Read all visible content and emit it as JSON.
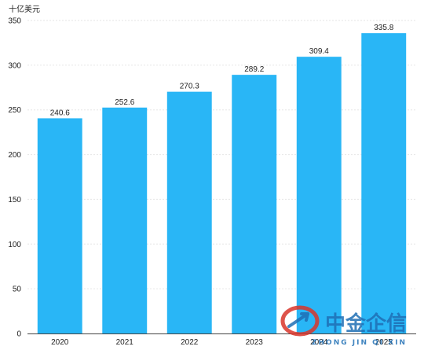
{
  "chart_data": {
    "type": "bar",
    "unit_label": "十亿美元",
    "categories": [
      "2020",
      "2021",
      "2022",
      "2023",
      "2024",
      "2025"
    ],
    "values": [
      240.6,
      252.6,
      270.3,
      289.2,
      309.4,
      335.8
    ],
    "ylim": [
      0,
      350
    ],
    "yticks": [
      0,
      50,
      100,
      150,
      200,
      250,
      300,
      350
    ],
    "data_labels": [
      "240.6",
      "252.6",
      "270.3",
      "289.2",
      "309.4",
      "335.8"
    ],
    "bar_color": "#29B6F6",
    "grid": true,
    "legend": "none"
  },
  "watermark": {
    "brand_cn": "中金企信",
    "brand_pinyin": "ZHONG JIN QI XIN",
    "colors": {
      "red": "#D9362B",
      "blue": "#1F6FB5"
    }
  }
}
